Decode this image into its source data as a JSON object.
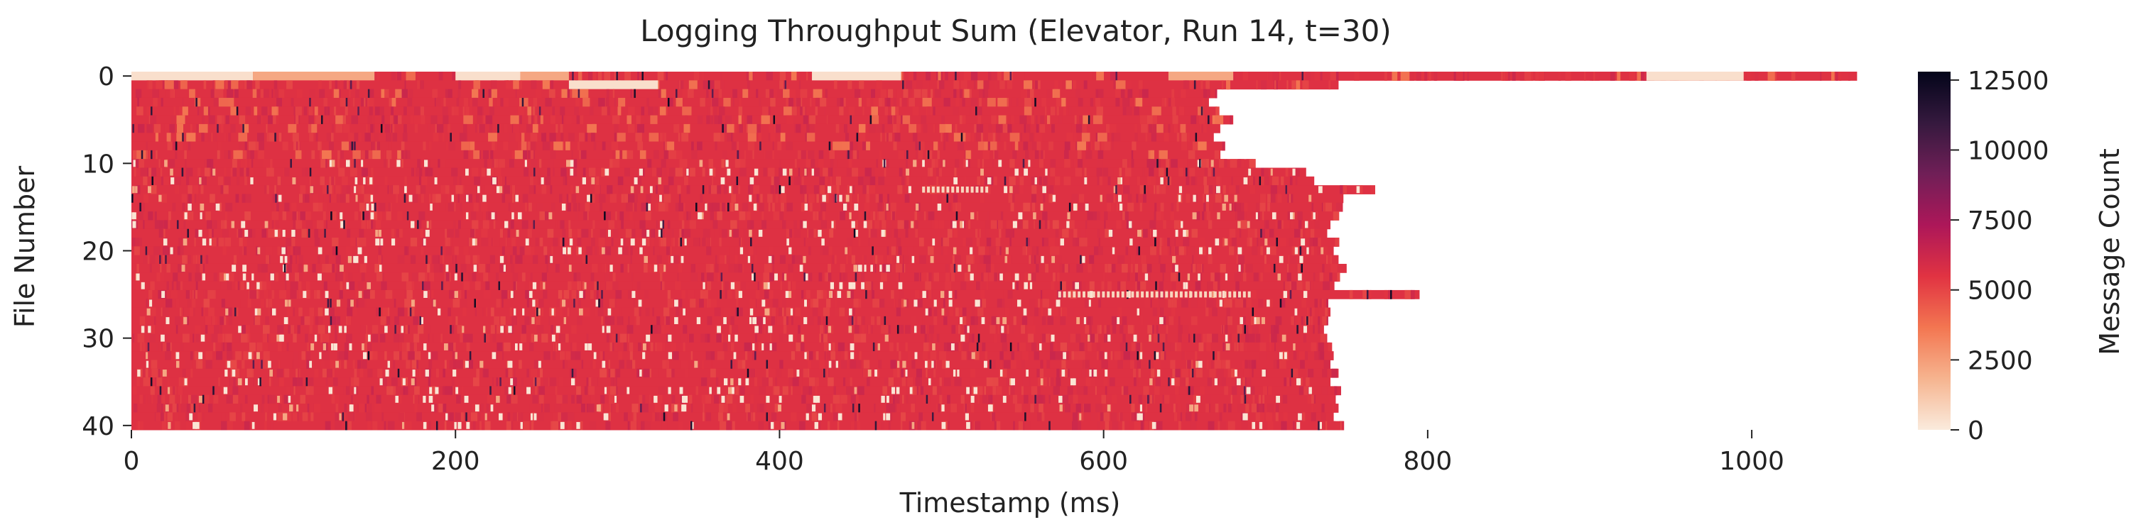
{
  "chart_data": {
    "type": "heatmap",
    "title": "Logging Throughput Sum (Elevator, Run 14, t=30)",
    "xlabel": "Timestamp (ms)",
    "ylabel": "File Number",
    "colorbar_label": "Message Count",
    "x_range": [
      0,
      1085
    ],
    "y_range": [
      0,
      41
    ],
    "x_ticks": [
      0,
      200,
      400,
      600,
      800,
      1000
    ],
    "y_ticks": [
      0,
      10,
      20,
      30,
      40
    ],
    "color_range": [
      0,
      12800
    ],
    "colorbar_ticks": [
      0,
      2500,
      5000,
      7500,
      10000,
      12500
    ],
    "colormap": "rocket_r",
    "colormap_stops": [
      "#faebdd",
      "#f6b48f",
      "#f37651",
      "#e13342",
      "#ad1759",
      "#701f57",
      "#35193e",
      "#03051a"
    ],
    "typical_value": 5600,
    "rows": [
      {
        "file": 0,
        "end_ms": 1065,
        "pattern": "light segments",
        "light_segments": [
          [
            0,
            75
          ],
          [
            75,
            150
          ],
          [
            200,
            240
          ],
          [
            240,
            270
          ],
          [
            420,
            475
          ],
          [
            640,
            680
          ],
          [
            935,
            995
          ]
        ]
      },
      {
        "file": 1,
        "end_ms": 745,
        "pattern": "mixed",
        "light_segments": [
          [
            270,
            325
          ]
        ]
      },
      {
        "file": 2,
        "end_ms": 670
      },
      {
        "file": 3,
        "end_ms": 665
      },
      {
        "file": 4,
        "end_ms": 670
      },
      {
        "file": 5,
        "end_ms": 680
      },
      {
        "file": 6,
        "end_ms": 672
      },
      {
        "file": 7,
        "end_ms": 668
      },
      {
        "file": 8,
        "end_ms": 675
      },
      {
        "file": 9,
        "end_ms": 670
      },
      {
        "file": 10,
        "end_ms": 690
      },
      {
        "file": 11,
        "end_ms": 725
      },
      {
        "file": 12,
        "end_ms": 730
      },
      {
        "file": 13,
        "end_ms": 765
      },
      {
        "file": 14,
        "end_ms": 748
      },
      {
        "file": 15,
        "end_ms": 745
      },
      {
        "file": 16,
        "end_ms": 742
      },
      {
        "file": 17,
        "end_ms": 740
      },
      {
        "file": 18,
        "end_ms": 738
      },
      {
        "file": 19,
        "end_ms": 745
      },
      {
        "file": 20,
        "end_ms": 742
      },
      {
        "file": 21,
        "end_ms": 745
      },
      {
        "file": 22,
        "end_ms": 750
      },
      {
        "file": 23,
        "end_ms": 745
      },
      {
        "file": 24,
        "end_ms": 740
      },
      {
        "file": 25,
        "end_ms": 795
      },
      {
        "file": 26,
        "end_ms": 738
      },
      {
        "file": 27,
        "end_ms": 740
      },
      {
        "file": 28,
        "end_ms": 738
      },
      {
        "file": 29,
        "end_ms": 736
      },
      {
        "file": 30,
        "end_ms": 738
      },
      {
        "file": 31,
        "end_ms": 740
      },
      {
        "file": 32,
        "end_ms": 742
      },
      {
        "file": 33,
        "end_ms": 738
      },
      {
        "file": 34,
        "end_ms": 745
      },
      {
        "file": 35,
        "end_ms": 740
      },
      {
        "file": 36,
        "end_ms": 743
      },
      {
        "file": 37,
        "end_ms": 742
      },
      {
        "file": 38,
        "end_ms": 745
      },
      {
        "file": 39,
        "end_ms": 742
      },
      {
        "file": 40,
        "end_ms": 748
      }
    ],
    "light_streaks": [
      {
        "file": 13,
        "from_ms": 488,
        "to_ms": 530
      },
      {
        "file": 25,
        "from_ms": 572,
        "to_ms": 690
      }
    ],
    "grid": false,
    "legend": "colorbar at right"
  }
}
